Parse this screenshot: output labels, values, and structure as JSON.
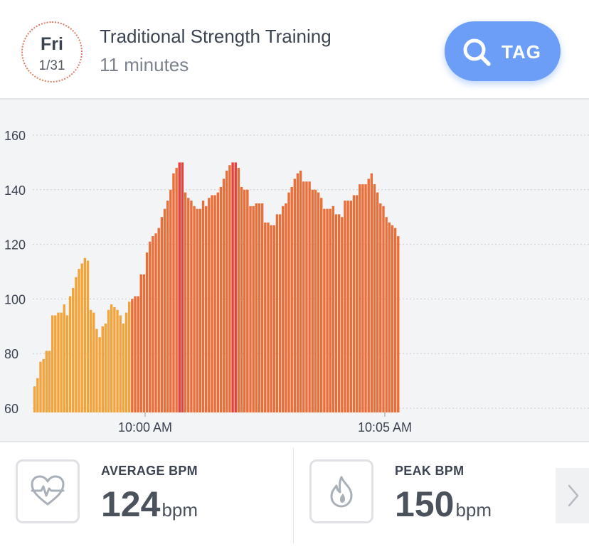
{
  "header": {
    "day": "Fri",
    "date": "1/31",
    "title": "Traditional Strength Training",
    "duration": "11 minutes",
    "tag_label": "TAG",
    "tag_icon": "search-icon"
  },
  "chart_data": {
    "type": "bar",
    "title": "",
    "xlabel": "",
    "ylabel": "",
    "ylim": [
      58,
      168
    ],
    "yticks": [
      60,
      80,
      100,
      120,
      140,
      160
    ],
    "xtick_labels": [
      "10:00 AM",
      "10:05 AM"
    ],
    "grid": true,
    "zone_colors": {
      "low": "#f2a33a",
      "moderate": "#e96f3a",
      "peak": "#e6403a"
    },
    "values": [
      68,
      71,
      77,
      78,
      81,
      81,
      94,
      94,
      95,
      95,
      98,
      94,
      101,
      104,
      108,
      111,
      113,
      115,
      114,
      96,
      95,
      89,
      86,
      90,
      91,
      96,
      98,
      97,
      96,
      94,
      91,
      95,
      99,
      100,
      101,
      101,
      109,
      109,
      117,
      121,
      123,
      124,
      126,
      130,
      133,
      136,
      140,
      146,
      148,
      150,
      150,
      139,
      137,
      136,
      134,
      133,
      133,
      136,
      134,
      137,
      138,
      138,
      139,
      141,
      144,
      147,
      149,
      150,
      150,
      148,
      141,
      140,
      140,
      134,
      134,
      135,
      135,
      135,
      128,
      128,
      127,
      127,
      131,
      131,
      134,
      135,
      139,
      141,
      144,
      146,
      147,
      143,
      143,
      143,
      140,
      140,
      139,
      137,
      133,
      133,
      133,
      134,
      131,
      131,
      130,
      136,
      136,
      136,
      138,
      138,
      142,
      142,
      142,
      144,
      146,
      142,
      139,
      135,
      134,
      130,
      128,
      127,
      126,
      123
    ],
    "zones": [
      "low",
      "low",
      "low",
      "low",
      "low",
      "low",
      "low",
      "low",
      "low",
      "low",
      "low",
      "low",
      "low",
      "low",
      "low",
      "low",
      "low",
      "low",
      "low",
      "low",
      "low",
      "low",
      "low",
      "low",
      "low",
      "low",
      "low",
      "low",
      "low",
      "low",
      "low",
      "low",
      "low",
      "moderate",
      "moderate",
      "moderate",
      "moderate",
      "moderate",
      "moderate",
      "moderate",
      "moderate",
      "moderate",
      "moderate",
      "moderate",
      "moderate",
      "moderate",
      "moderate",
      "moderate",
      "moderate",
      "peak",
      "peak",
      "moderate",
      "moderate",
      "moderate",
      "moderate",
      "moderate",
      "moderate",
      "moderate",
      "moderate",
      "moderate",
      "moderate",
      "moderate",
      "moderate",
      "moderate",
      "moderate",
      "moderate",
      "moderate",
      "peak",
      "peak",
      "moderate",
      "moderate",
      "moderate",
      "moderate",
      "moderate",
      "moderate",
      "moderate",
      "moderate",
      "moderate",
      "moderate",
      "moderate",
      "moderate",
      "moderate",
      "moderate",
      "moderate",
      "moderate",
      "moderate",
      "moderate",
      "moderate",
      "moderate",
      "moderate",
      "moderate",
      "moderate",
      "moderate",
      "moderate",
      "moderate",
      "moderate",
      "moderate",
      "moderate",
      "moderate",
      "moderate",
      "moderate",
      "moderate",
      "moderate",
      "moderate",
      "moderate",
      "moderate",
      "moderate",
      "moderate",
      "moderate",
      "moderate",
      "moderate",
      "moderate",
      "moderate",
      "moderate",
      "moderate",
      "moderate",
      "moderate",
      "moderate",
      "moderate",
      "moderate",
      "moderate",
      "moderate",
      "moderate",
      "moderate"
    ]
  },
  "stats": {
    "average": {
      "label": "AVERAGE BPM",
      "value": "124",
      "unit": "bpm",
      "icon": "heart-rate-icon"
    },
    "peak": {
      "label": "PEAK BPM",
      "value": "150",
      "unit": "bpm",
      "icon": "flame-icon"
    },
    "next_icon": "chevron-right-icon"
  }
}
